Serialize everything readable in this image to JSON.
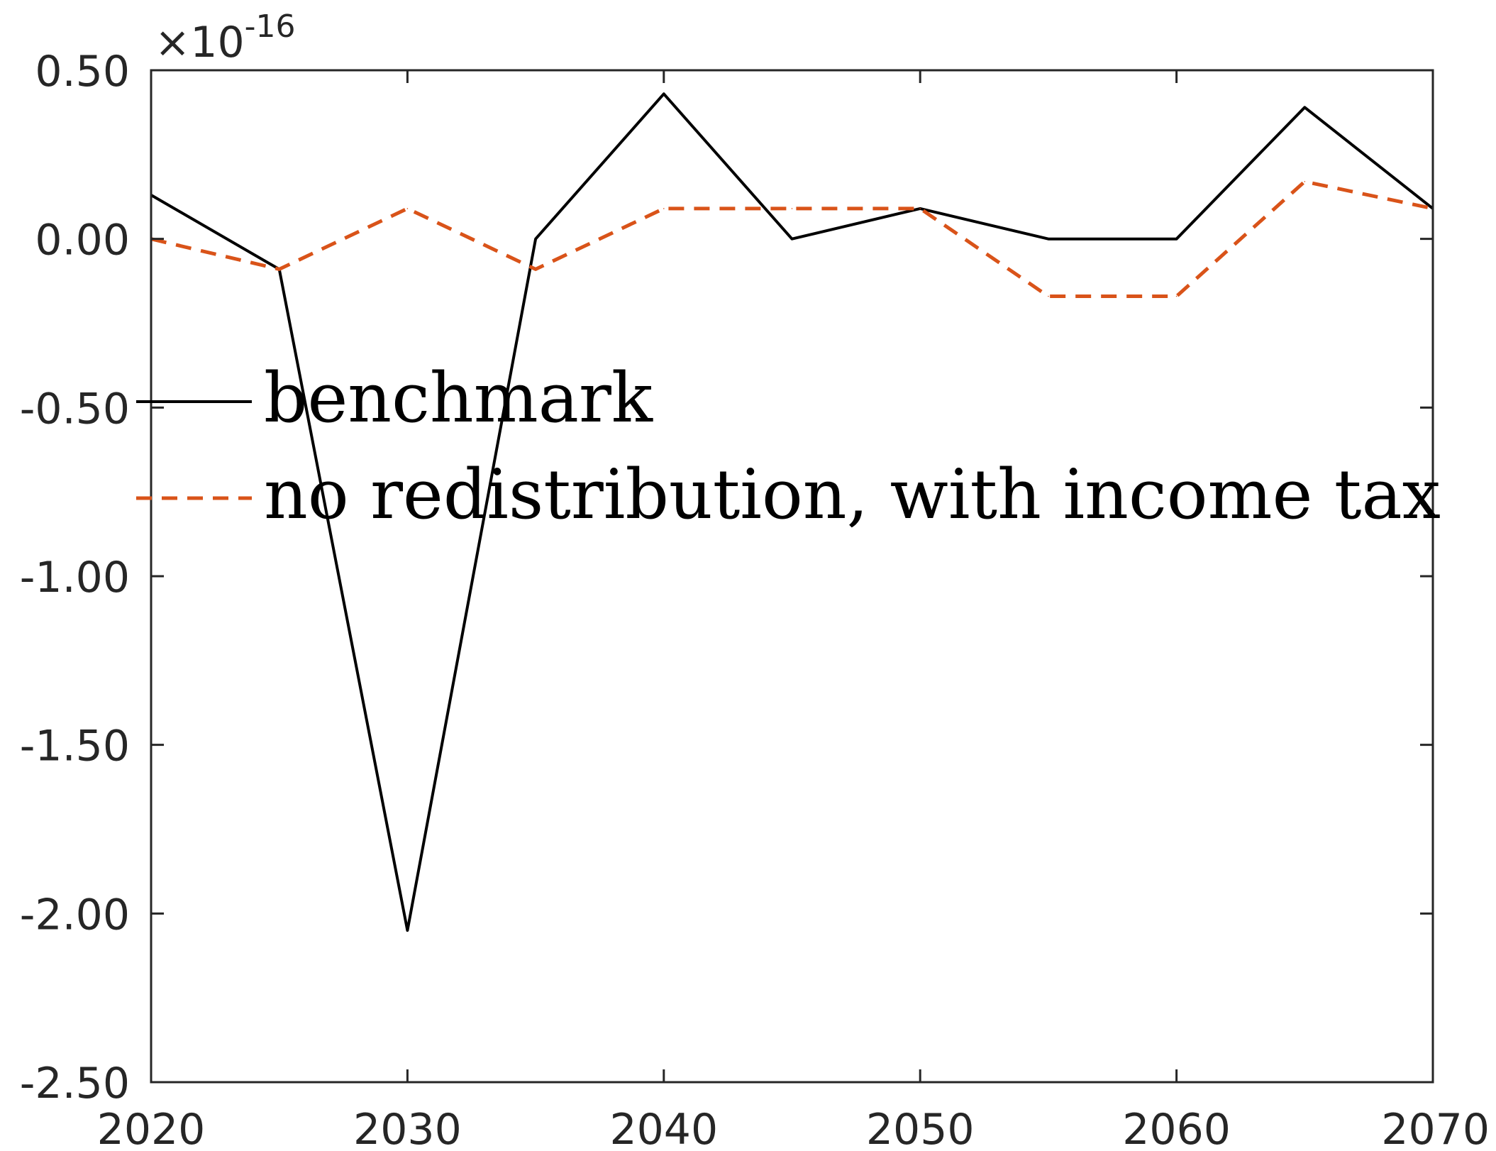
{
  "chart_data": {
    "type": "line",
    "title": "",
    "xlabel": "",
    "ylabel": "",
    "y_exponent": {
      "base": "×10",
      "power": "-16"
    },
    "x": [
      2020,
      2025,
      2030,
      2035,
      2040,
      2045,
      2050,
      2055,
      2060,
      2065,
      2070
    ],
    "xlim": [
      2020,
      2070
    ],
    "ylim": [
      -2.5,
      0.5
    ],
    "x_ticks": [
      2020,
      2030,
      2040,
      2050,
      2060,
      2070
    ],
    "x_tick_labels": [
      "2020",
      "2030",
      "2040",
      "2050",
      "2060",
      "2070"
    ],
    "y_ticks": [
      0.5,
      0,
      -0.5,
      -1,
      -1.5,
      -2,
      -2.5
    ],
    "y_tick_labels": [
      "0.50",
      "0.00",
      "-0.50",
      "-1.00",
      "-1.50",
      "-2.00",
      "-2.50"
    ],
    "grid": false,
    "legend_placement": "center-left",
    "series": [
      {
        "name": "benchmark",
        "color": "#000000",
        "style": "solid",
        "values": [
          0.13,
          -0.09,
          -2.05,
          0.0,
          0.43,
          0.0,
          0.09,
          0.0,
          0.0,
          0.39,
          0.09
        ]
      },
      {
        "name": "no redistribution, with income tax",
        "color": "#D95319",
        "style": "dashed",
        "values": [
          0.0,
          -0.09,
          0.09,
          -0.09,
          0.09,
          0.09,
          0.09,
          -0.17,
          -0.17,
          0.17,
          0.09
        ]
      }
    ]
  }
}
